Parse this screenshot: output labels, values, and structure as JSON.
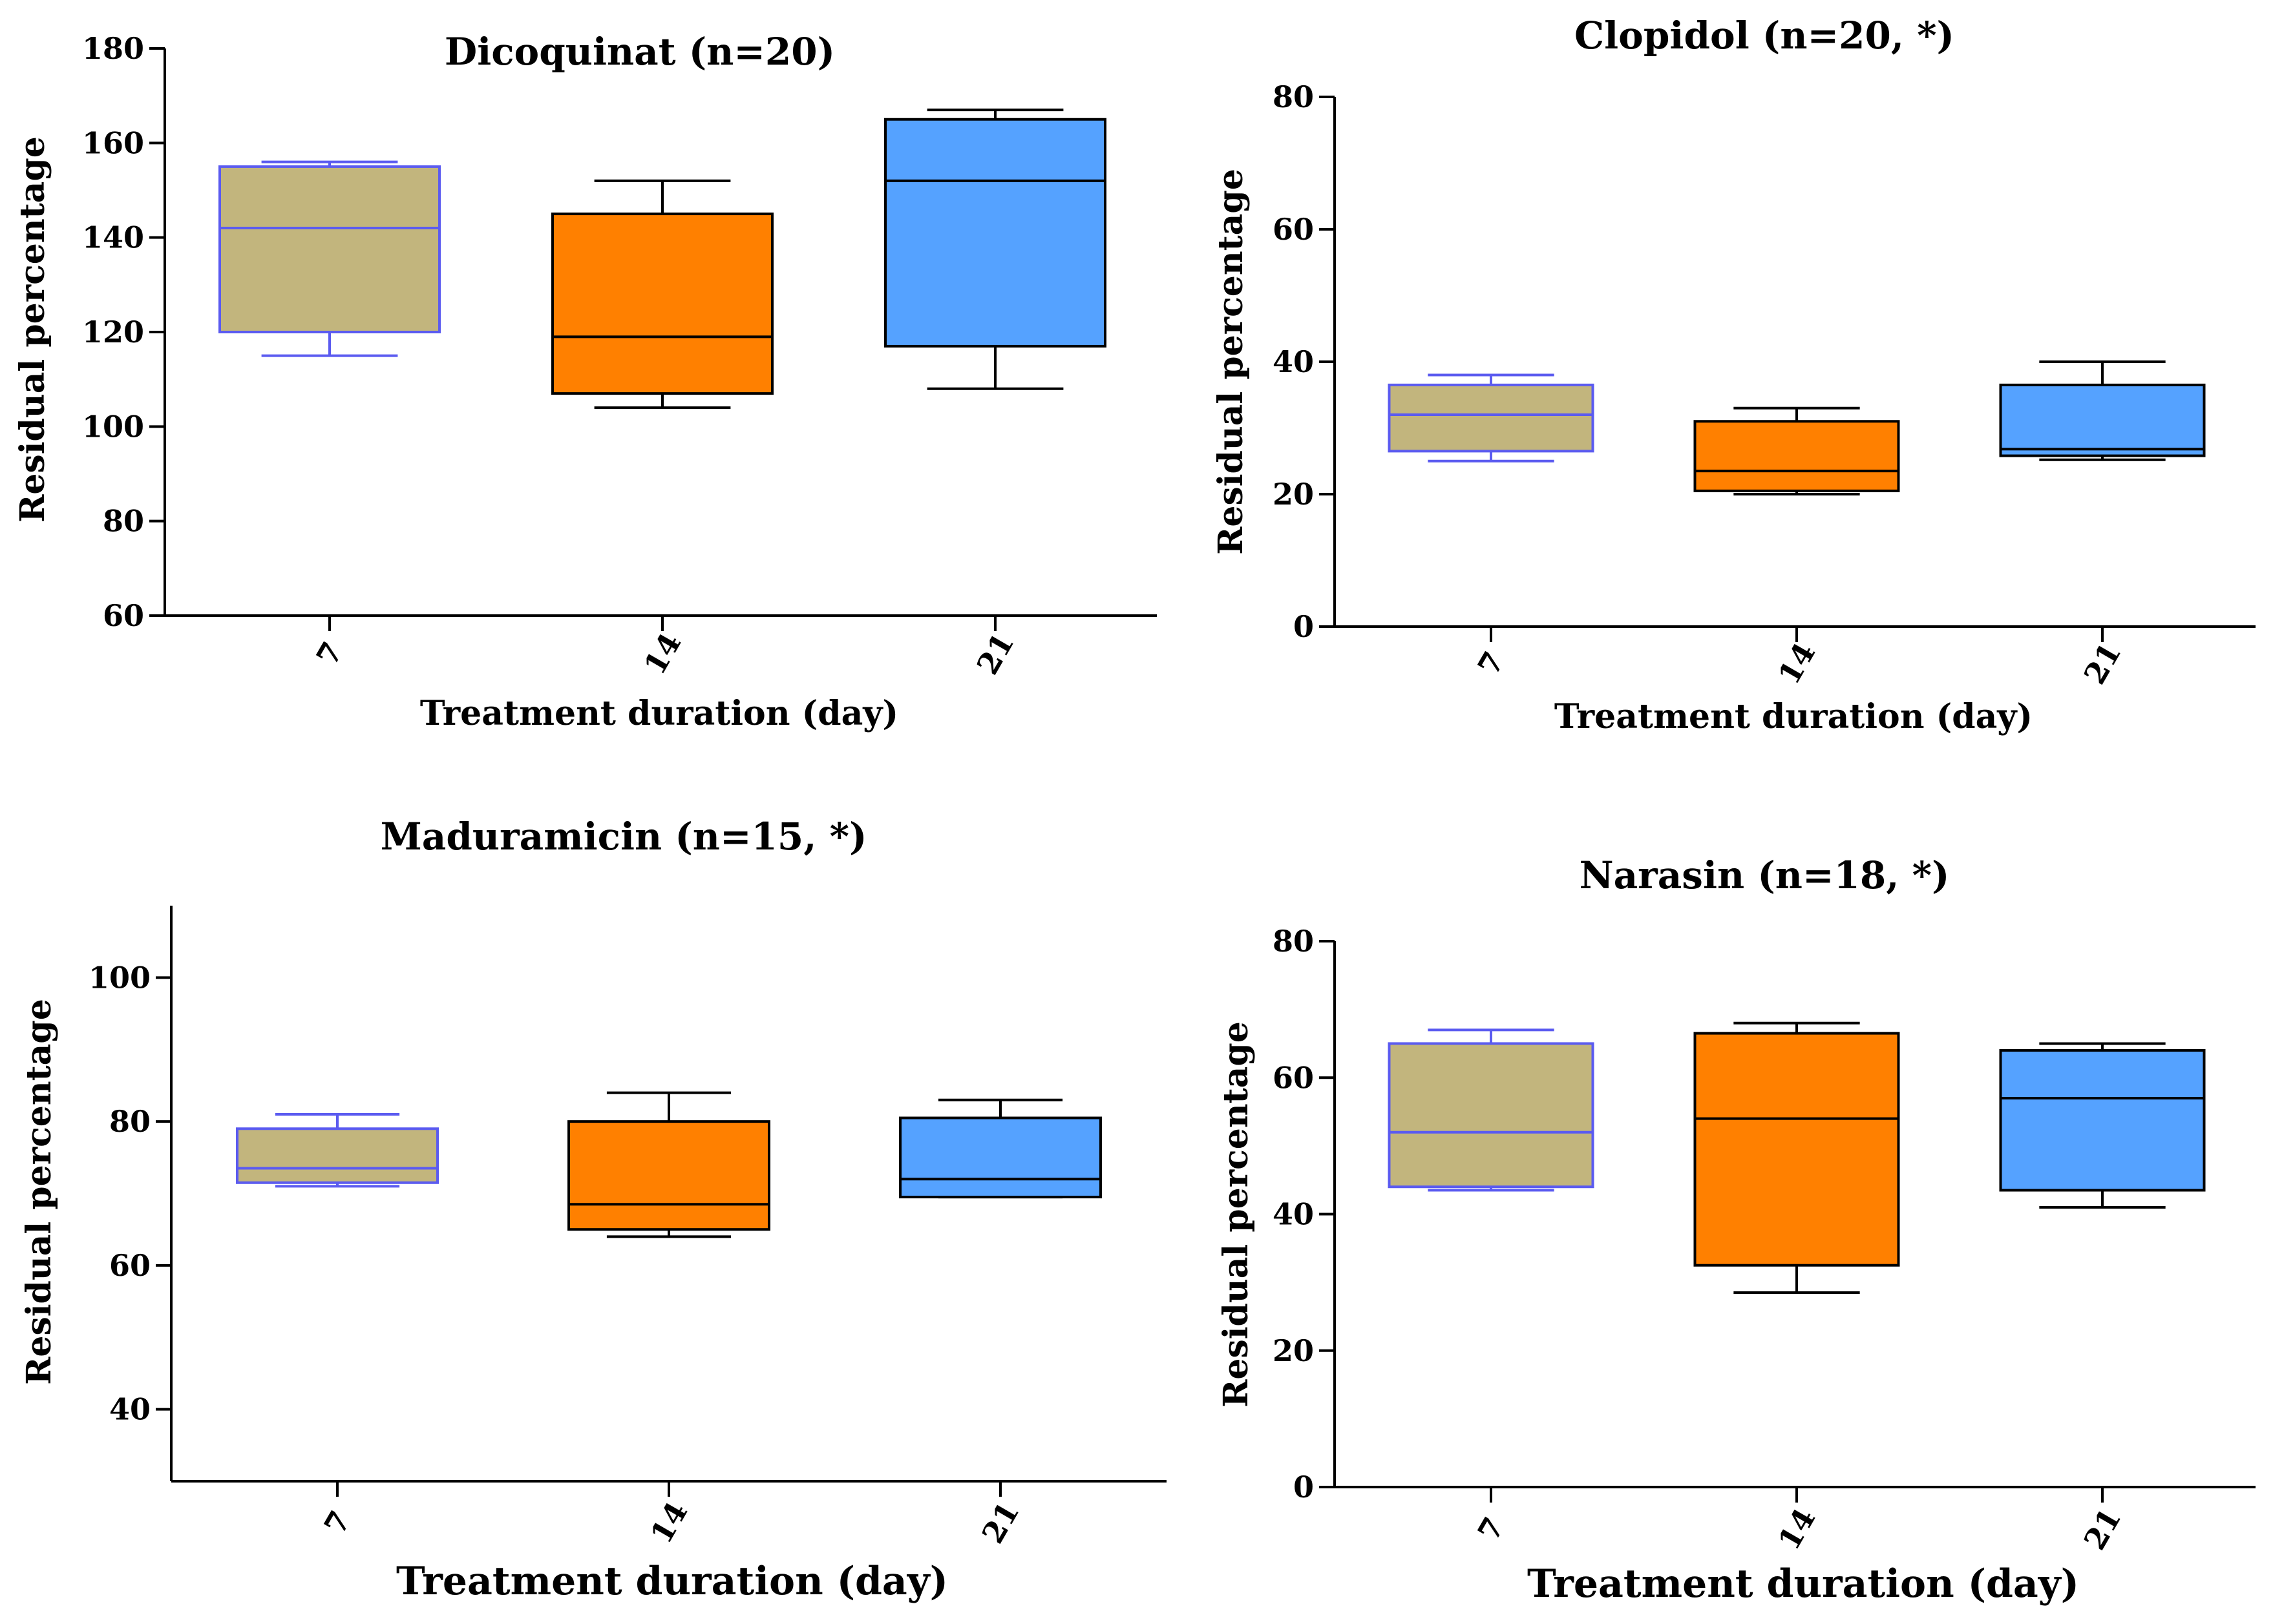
{
  "figure": {
    "colors": {
      "box_7": "#c2b57d",
      "box_14": "#ff8000",
      "box_21": "#55a2ff",
      "stroke_7": "#5b5bf0",
      "stroke_default": "#000000"
    }
  },
  "chart_data": [
    {
      "type": "box",
      "title": "Dicoquinat (n=20)",
      "xlabel": "Treatment duration (day)",
      "ylabel": "Residual percentage",
      "ylim": [
        60,
        180
      ],
      "yticks": [
        "60",
        "80",
        "100",
        "120",
        "140",
        "160",
        "180"
      ],
      "categories": [
        "7",
        "14",
        "21"
      ],
      "boxes": [
        {
          "category": "7",
          "min": 115,
          "q1": 120,
          "median": 142,
          "q3": 155,
          "max": 156
        },
        {
          "category": "14",
          "min": 104,
          "q1": 107,
          "median": 119,
          "q3": 145,
          "max": 152
        },
        {
          "category": "21",
          "min": 108,
          "q1": 117,
          "median": 152,
          "q3": 165,
          "max": 167
        }
      ]
    },
    {
      "type": "box",
      "title": "Clopidol (n=20, *)",
      "xlabel": "Treatment duration (day)",
      "ylabel": "Residual percentage",
      "ylim": [
        0,
        80
      ],
      "yticks": [
        "0",
        "20",
        "40",
        "60",
        "80"
      ],
      "categories": [
        "7",
        "14",
        "21"
      ],
      "boxes": [
        {
          "category": "7",
          "min": 25,
          "q1": 26.5,
          "median": 32,
          "q3": 36.5,
          "max": 38
        },
        {
          "category": "14",
          "min": 20,
          "q1": 20.5,
          "median": 23.5,
          "q3": 31,
          "max": 33
        },
        {
          "category": "21",
          "min": 25.2,
          "q1": 25.8,
          "median": 26.8,
          "q3": 36.5,
          "max": 40
        }
      ]
    },
    {
      "type": "box",
      "title": "Maduramicin (n=15, *)",
      "xlabel": "Treatment duration (day)",
      "ylabel": "Residual percentage",
      "ylim": [
        30,
        110
      ],
      "yticks": [
        "40",
        "60",
        "80",
        "100"
      ],
      "categories": [
        "7",
        "14",
        "21"
      ],
      "boxes": [
        {
          "category": "7",
          "min": 71,
          "q1": 71.5,
          "median": 73.5,
          "q3": 79,
          "max": 81
        },
        {
          "category": "14",
          "min": 64,
          "q1": 65,
          "median": 68.5,
          "q3": 80,
          "max": 84
        },
        {
          "category": "21",
          "min": 69.5,
          "q1": 69.5,
          "median": 72,
          "q3": 80.5,
          "max": 83
        }
      ]
    },
    {
      "type": "box",
      "title": "Narasin (n=18, *)",
      "xlabel": "Treatment duration (day)",
      "ylabel": "Residual percentage",
      "ylim": [
        0,
        80
      ],
      "yticks": [
        "0",
        "20",
        "40",
        "60",
        "80"
      ],
      "categories": [
        "7",
        "14",
        "21"
      ],
      "boxes": [
        {
          "category": "7",
          "min": 43.5,
          "q1": 44,
          "median": 52,
          "q3": 65,
          "max": 67
        },
        {
          "category": "14",
          "min": 28.5,
          "q1": 32.5,
          "median": 54,
          "q3": 66.5,
          "max": 68
        },
        {
          "category": "21",
          "min": 41,
          "q1": 43.5,
          "median": 57,
          "q3": 64,
          "max": 65
        }
      ]
    }
  ]
}
